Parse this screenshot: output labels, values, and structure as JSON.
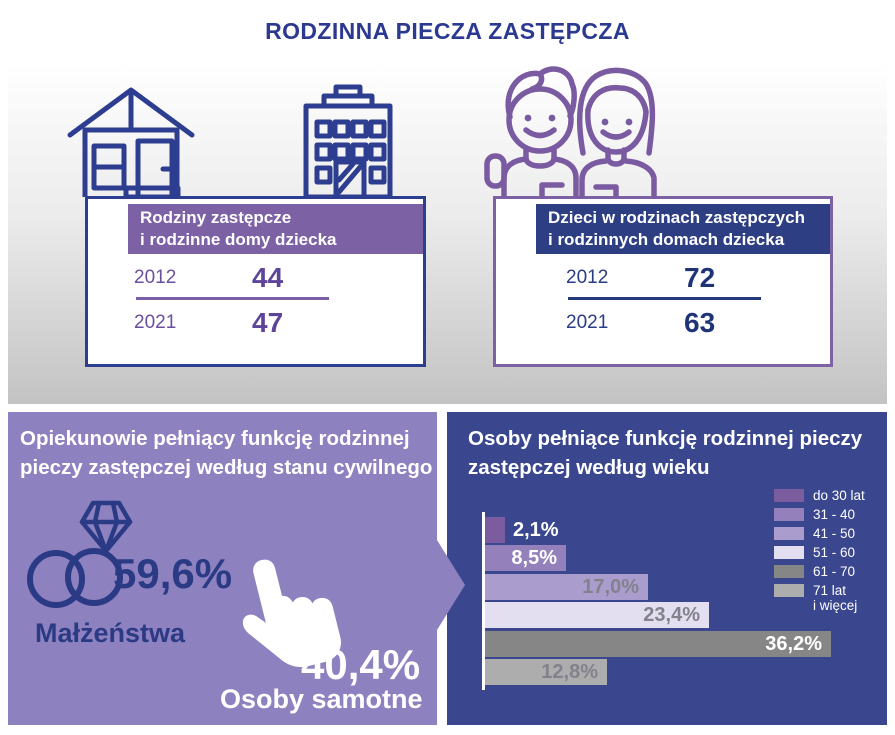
{
  "title": "RODZINNA PIECZA ZASTĘPCZA",
  "cards": {
    "left": {
      "header_line1": "Rodziny zastępcze",
      "header_line2": "i rodzinne domy dziecka",
      "rows": [
        {
          "year": "2012",
          "value": "44"
        },
        {
          "year": "2021",
          "value": "47"
        }
      ]
    },
    "right": {
      "header_line1": "Dzieci w rodzinach zastępczych",
      "header_line2": "i rodzinnych domach dziecka",
      "rows": [
        {
          "year": "2012",
          "value": "72"
        },
        {
          "year": "2021",
          "value": "63"
        }
      ]
    }
  },
  "marital_panel": {
    "title_line1": "Opiekunowie pełniący funkcję rodzinnej",
    "title_line2": "pieczy zastępczej według stanu cywilnego",
    "married_pct": "59,6%",
    "married_label": "Małżeństwa",
    "single_pct": "40,4%",
    "single_label": "Osoby samotne"
  },
  "age_panel": {
    "title_line1": "Osoby pełniące funkcję rodzinnej pieczy",
    "title_line2": "zastępczej według wieku"
  },
  "chart_data": {
    "type": "bar",
    "orientation": "horizontal",
    "title": "Osoby pełniące funkcję rodzinnej pieczy zastępczej według wieku",
    "categories": [
      "do 30 lat",
      "31 - 40",
      "41 - 50",
      "51 - 60",
      "61 - 70",
      "71 lat i więcej"
    ],
    "values": [
      2.1,
      8.5,
      17.0,
      23.4,
      36.2,
      12.8
    ],
    "labels": [
      "2,1%",
      "8,5%",
      "17,0%",
      "23,4%",
      "36,2%",
      "12,8%"
    ],
    "legend_labels": [
      "do 30 lat",
      "31 - 40",
      "41 - 50",
      "51 - 60",
      "61 - 70",
      "71 lat\ni więcej"
    ],
    "colors": [
      "#7b5c9f",
      "#9480bb",
      "#ab9cce",
      "#e4dff0",
      "#868686",
      "#adadad"
    ],
    "label_colors": [
      "#ffffff",
      "#ffffff",
      "#82828c",
      "#82828c",
      "#ffffff",
      "#82828c"
    ],
    "xlim": [
      0,
      40
    ],
    "grid": false,
    "legend_position": "right"
  },
  "icons": {
    "house": "house-icon",
    "building": "building-icon",
    "couple": "couple-icon",
    "rings": "wedding-rings-icon",
    "hand": "pointing-hand-icon",
    "arrow": "right-arrow"
  },
  "colors": {
    "navy_text": "#2b3990",
    "navy_panel": "#3a478f",
    "navy_band": "#2e3e83",
    "purple_band": "#7c61a5",
    "purple_panel": "#8d81bf",
    "purple_value": "#5c4499",
    "gray_gradient_end": "#c3c3c3"
  }
}
